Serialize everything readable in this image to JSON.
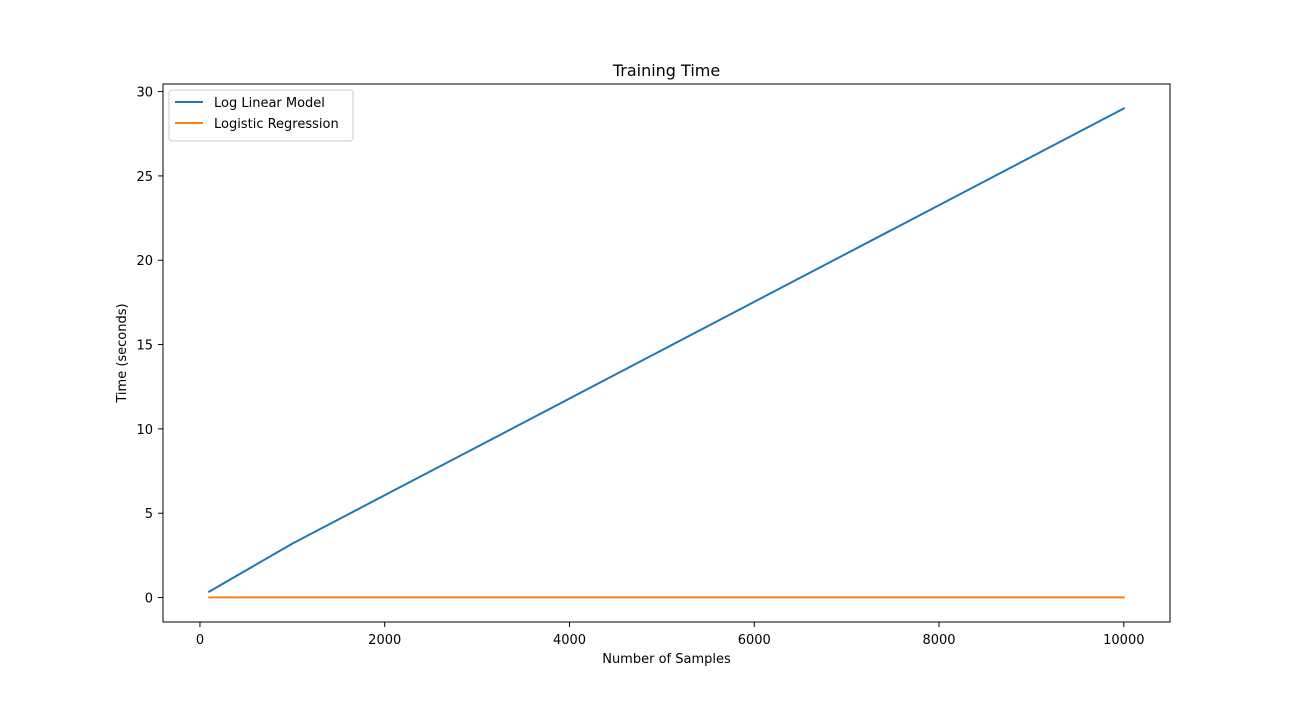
{
  "chart_data": {
    "type": "line",
    "title": "Training Time",
    "xlabel": "Number of Samples",
    "ylabel": "Time (seconds)",
    "xlim": [
      -400,
      10500
    ],
    "ylim": [
      -1.45,
      30.45
    ],
    "x_ticks": [
      0,
      2000,
      4000,
      6000,
      8000,
      10000
    ],
    "y_ticks": [
      0,
      5,
      10,
      15,
      20,
      25,
      30
    ],
    "grid": false,
    "legend_position": "upper-left",
    "series": [
      {
        "name": "Log Linear Model",
        "color": "#1f77b4",
        "x": [
          100,
          1000,
          10000
        ],
        "values": [
          0.35,
          3.2,
          29.0
        ]
      },
      {
        "name": "Logistic Regression",
        "color": "#ff7f0e",
        "x": [
          100,
          1000,
          10000
        ],
        "values": [
          0.01,
          0.01,
          0.01
        ]
      }
    ]
  }
}
